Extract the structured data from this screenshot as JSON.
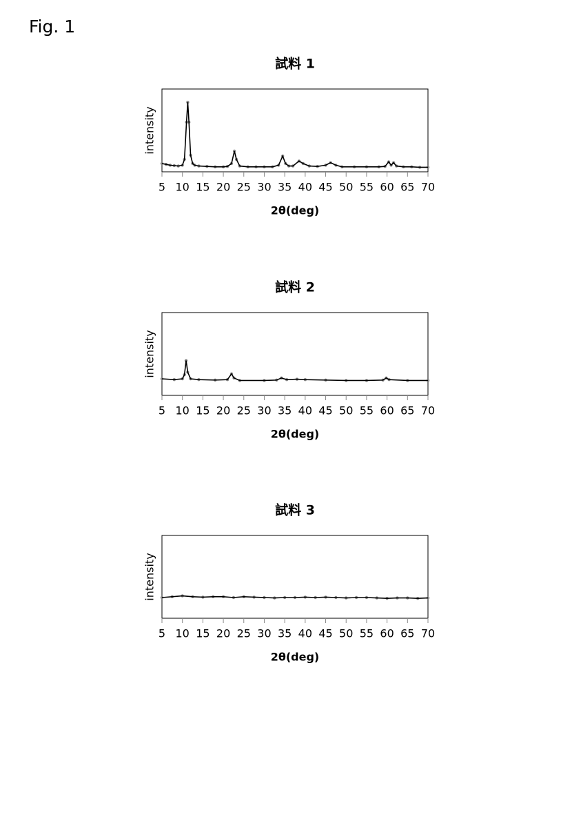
{
  "figure_label": "Fig. 1",
  "chart_data": [
    {
      "type": "line",
      "title": "試料 1",
      "x_label": "2θ(deg)",
      "y_label": "intensity",
      "x": [
        5,
        6,
        7,
        8,
        9,
        10,
        10.5,
        11,
        11.3,
        11.6,
        12,
        12.5,
        13,
        14,
        16,
        18,
        20,
        21,
        22,
        22.7,
        23.2,
        24,
        26,
        28,
        30,
        32,
        33.5,
        34.5,
        35.2,
        36,
        37,
        38.5,
        39.5,
        41,
        43,
        45,
        46.2,
        47.5,
        49,
        52,
        55,
        58,
        59.5,
        60.4,
        61,
        61.6,
        62.3,
        64,
        66,
        68,
        70
      ],
      "series": [
        {
          "color": "#000000",
          "marker_color": "#888888",
          "values": [
            10,
            9,
            8,
            7.5,
            7,
            8,
            15,
            60,
            84,
            60,
            20,
            10,
            8,
            7,
            6.5,
            6,
            6,
            6.5,
            10,
            25,
            15,
            7,
            6,
            6,
            6,
            6,
            8,
            19,
            10,
            7,
            7,
            13,
            10,
            7,
            6.5,
            8,
            11,
            8,
            6,
            6,
            6,
            6,
            6.5,
            12,
            8,
            11,
            7,
            6,
            6,
            5.5,
            5.5
          ]
        }
      ],
      "xlim": [
        5,
        70
      ],
      "xticks": [
        5,
        10,
        15,
        20,
        25,
        30,
        35,
        40,
        45,
        50,
        55,
        60,
        65,
        70
      ],
      "ylim": [
        0,
        100
      ]
    },
    {
      "type": "line",
      "title": "試料 2",
      "x_label": "2θ(deg)",
      "y_label": "intensity",
      "x": [
        5,
        8,
        10,
        10.5,
        10.9,
        11.3,
        12,
        14,
        18,
        21,
        22,
        22.6,
        24,
        30,
        33,
        34.2,
        35.5,
        38,
        40,
        45,
        50,
        55,
        59,
        59.8,
        60.5,
        65,
        70
      ],
      "series": [
        {
          "color": "#000000",
          "marker_color": "#888888",
          "values": [
            20,
            19,
            20,
            25,
            42,
            28,
            20,
            19,
            18.5,
            19,
            26,
            21,
            18,
            18,
            18.5,
            21,
            19,
            19.5,
            19,
            18.5,
            18,
            18,
            18.5,
            21,
            19,
            18,
            18
          ]
        }
      ],
      "xlim": [
        5,
        70
      ],
      "xticks": [
        5,
        10,
        15,
        20,
        25,
        30,
        35,
        40,
        45,
        50,
        55,
        60,
        65,
        70
      ],
      "ylim": [
        0,
        100
      ]
    },
    {
      "type": "line",
      "title": "試料 3",
      "x_label": "2θ(deg)",
      "y_label": "intensity",
      "x": [
        5,
        7.5,
        10,
        12.5,
        15,
        17.5,
        20,
        22.5,
        25,
        27.5,
        30,
        32.5,
        35,
        37.5,
        40,
        42.5,
        45,
        47.5,
        50,
        52.5,
        55,
        57.5,
        60,
        62.5,
        65,
        67.5,
        70
      ],
      "series": [
        {
          "color": "#000000",
          "marker_color": "#888888",
          "values": [
            25,
            26,
            27,
            26,
            25.5,
            26,
            26,
            25,
            26,
            25.5,
            25,
            24.5,
            25,
            25,
            25.5,
            25,
            25.5,
            25,
            24.5,
            25,
            25,
            24.5,
            24,
            24.5,
            24.5,
            24,
            24.5
          ]
        }
      ],
      "xlim": [
        5,
        70
      ],
      "xticks": [
        5,
        10,
        15,
        20,
        25,
        30,
        35,
        40,
        45,
        50,
        55,
        60,
        65,
        70
      ],
      "ylim": [
        0,
        100
      ]
    }
  ]
}
